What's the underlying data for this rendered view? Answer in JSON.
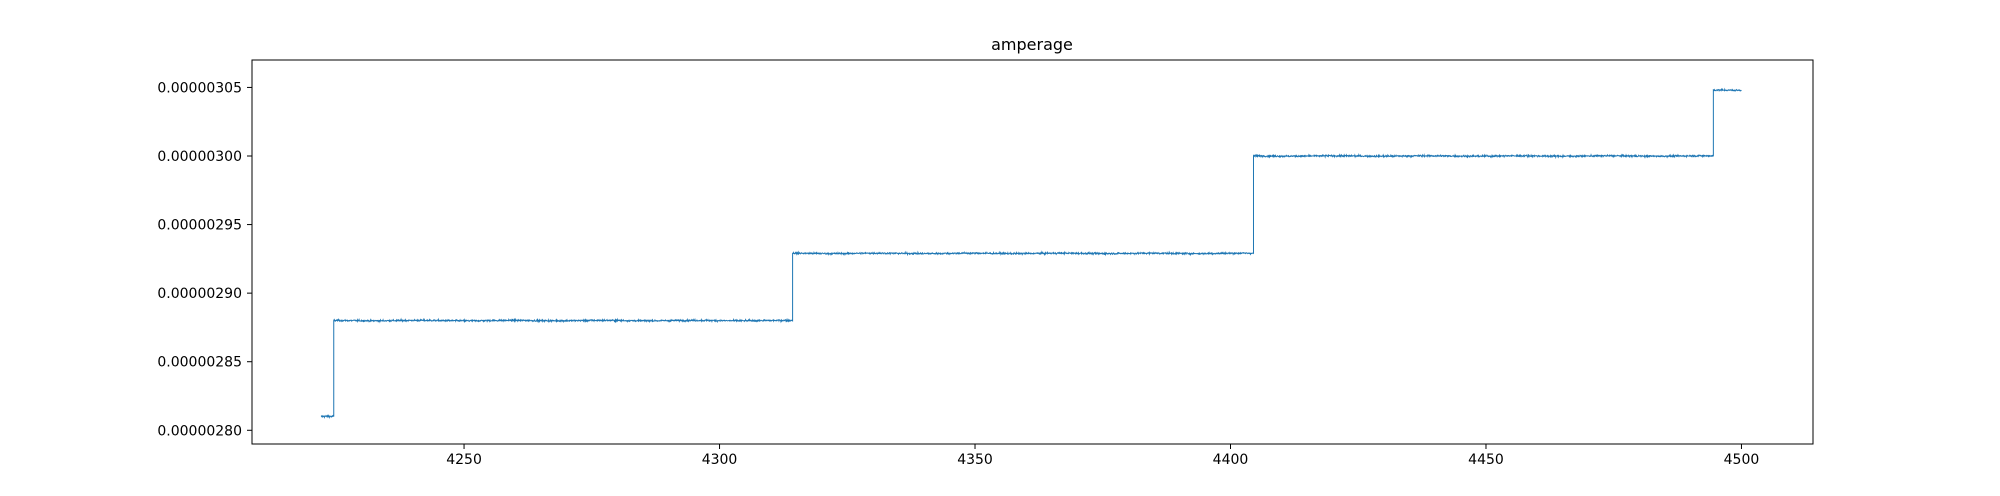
{
  "chart_data": {
    "type": "line",
    "title": "amperage",
    "xlabel": "",
    "ylabel": "",
    "xlim": [
      4208.5,
      4514
    ],
    "ylim": [
      2.79e-06,
      3.07e-06
    ],
    "x_ticks": [
      4250,
      4300,
      4350,
      4400,
      4450,
      4500
    ],
    "x_tick_labels": [
      "4250",
      "4300",
      "4350",
      "4400",
      "4450",
      "4500"
    ],
    "y_ticks": [
      2.8e-06,
      2.85e-06,
      2.9e-06,
      2.95e-06,
      3e-06,
      3.05e-06
    ],
    "y_tick_labels": [
      "0.00000280",
      "0.00000285",
      "0.00000290",
      "0.00000295",
      "0.00000300",
      "0.00000305"
    ],
    "line_color": "#1f77b4",
    "grid": false,
    "series": [
      {
        "segments": [
          {
            "x_start": 4222.0,
            "x_end": 4224.5,
            "level": 2.81e-06,
            "noise": 6.5e-10
          },
          {
            "x_start": 4224.5,
            "x_end": 4314.3,
            "level": 2.88e-06,
            "noise": 5e-10
          },
          {
            "x_start": 4314.3,
            "x_end": 4404.5,
            "level": 2.929e-06,
            "noise": 5e-10
          },
          {
            "x_start": 4404.5,
            "x_end": 4494.5,
            "level": 3e-06,
            "noise": 5e-10
          },
          {
            "x_start": 4494.5,
            "x_end": 4500.0,
            "level": 3.048e-06,
            "noise": 5e-10
          }
        ]
      }
    ]
  }
}
